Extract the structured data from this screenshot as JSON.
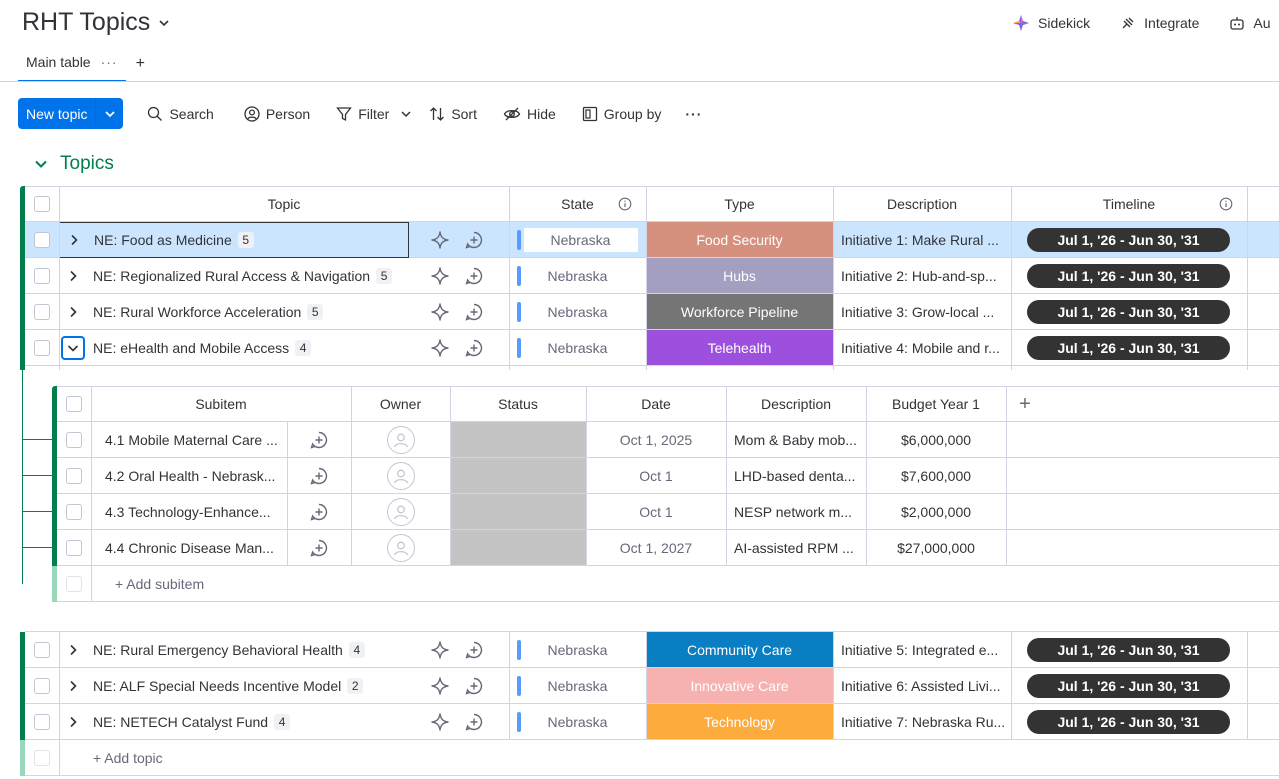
{
  "board": {
    "title": "RHT Topics"
  },
  "top_actions": {
    "sidekick": "Sidekick",
    "integrate": "Integrate",
    "automate": "Au"
  },
  "views": {
    "main_table": "Main table",
    "more": "···",
    "add": "+"
  },
  "toolbar": {
    "new_item": "New topic",
    "search": "Search",
    "person": "Person",
    "filter": "Filter",
    "sort": "Sort",
    "hide": "Hide",
    "group_by": "Group by",
    "more": "···"
  },
  "group": {
    "title": "Topics",
    "color": "#037f4c",
    "columns": {
      "topic": "Topic",
      "state": "State",
      "type": "Type",
      "description": "Description",
      "timeline": "Timeline"
    },
    "add_item": "+ Add topic",
    "rows": [
      {
        "name": "NE: Food as Medicine",
        "count": "5",
        "state": "Nebraska",
        "type": "Food Security",
        "type_color": "#d5917d",
        "description": "Initiative 1: Make Rural ...",
        "timeline": "Jul 1, '26 - Jun 30, '31"
      },
      {
        "name": "NE: Regionalized Rural Access & Navigation",
        "count": "5",
        "state": "Nebraska",
        "type": "Hubs",
        "type_color": "#a39fc0",
        "description": "Initiative 2: Hub-and-sp...",
        "timeline": "Jul 1, '26 - Jun 30, '31"
      },
      {
        "name": "NE: Rural Workforce Acceleration",
        "count": "5",
        "state": "Nebraska",
        "type": "Workforce Pipeline",
        "type_color": "#757575",
        "description": "Initiative 3: Grow-local ...",
        "timeline": "Jul 1, '26 - Jun 30, '31"
      },
      {
        "name": "NE: eHealth and Mobile Access",
        "count": "4",
        "state": "Nebraska",
        "type": "Telehealth",
        "type_color": "#9d50dd",
        "description": "Initiative 4: Mobile and r...",
        "timeline": "Jul 1, '26 - Jun 30, '31"
      }
    ],
    "rows_after": [
      {
        "name": "NE: Rural Emergency Behavioral Health",
        "count": "4",
        "state": "Nebraska",
        "type": "Community Care",
        "type_color": "#0a7ec2",
        "description": "Initiative 5: Integrated e...",
        "timeline": "Jul 1, '26 - Jun 30, '31"
      },
      {
        "name": "NE: ALF Special Needs Incentive Model",
        "count": "2",
        "state": "Nebraska",
        "type": "Innovative Care",
        "type_color": "#f8b1b1",
        "description": "Initiative 6: Assisted Livi...",
        "timeline": "Jul 1, '26 - Jun 30, '31"
      },
      {
        "name": "NE: NETECH Catalyst Fund",
        "count": "4",
        "state": "Nebraska",
        "type": "Technology",
        "type_color": "#fdab3d",
        "description": "Initiative 7: Nebraska Ru...",
        "timeline": "Jul 1, '26 - Jun 30, '31"
      }
    ]
  },
  "subitems": {
    "columns": {
      "subitem": "Subitem",
      "owner": "Owner",
      "status": "Status",
      "date": "Date",
      "description": "Description",
      "budget": "Budget Year 1",
      "add": "+"
    },
    "add_item": "+ Add subitem",
    "rows": [
      {
        "name": "4.1 Mobile Maternal Care ...",
        "date": "Oct 1, 2025",
        "description": "Mom & Baby mob...",
        "budget": "$6,000,000"
      },
      {
        "name": "4.2 Oral Health - Nebrask...",
        "date": "Oct 1",
        "description": "LHD-based denta...",
        "budget": "$7,600,000"
      },
      {
        "name": "4.3 Technology-Enhance...",
        "date": "Oct 1",
        "description": "NESP network m...",
        "budget": "$2,000,000"
      },
      {
        "name": "4.4 Chronic Disease Man...",
        "date": "Oct 1, 2027",
        "description": "AI-assisted RPM ...",
        "budget": "$27,000,000"
      }
    ]
  }
}
